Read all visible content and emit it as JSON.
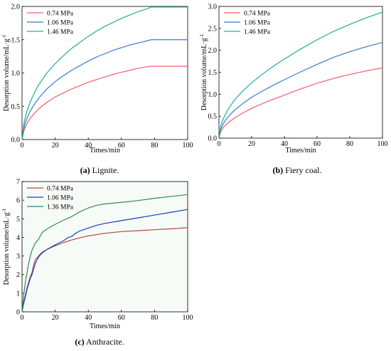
{
  "chart_data": [
    {
      "id": "a",
      "type": "line",
      "caption_label": "(a)",
      "caption_text": "Lignite.",
      "xlabel": "Times/min",
      "ylabel": "Desorption volume/mL·g",
      "ylabel_sup": "-1",
      "xlim": [
        0,
        100
      ],
      "ylim": [
        0,
        2.0
      ],
      "xticks": [
        "0",
        "20",
        "40",
        "60",
        "80",
        "100"
      ],
      "yticks": [
        "0.0",
        "0.5",
        "1.0",
        "1.5",
        "2.0"
      ],
      "legend_position": "top-left",
      "series": [
        {
          "name": "0.74 MPa",
          "color": "#f0606a",
          "x": [
            0,
            1,
            2,
            3,
            5,
            8,
            10,
            15,
            20,
            25,
            30,
            35,
            40,
            45,
            50,
            55,
            60,
            65,
            70,
            75,
            77,
            80,
            90,
            100
          ],
          "y": [
            0,
            0.12,
            0.19,
            0.24,
            0.32,
            0.41,
            0.46,
            0.56,
            0.64,
            0.7,
            0.76,
            0.81,
            0.86,
            0.9,
            0.94,
            0.98,
            1.01,
            1.04,
            1.07,
            1.09,
            1.1,
            1.1,
            1.1,
            1.1
          ]
        },
        {
          "name": "1.06 MPa",
          "color": "#2f7fd6",
          "x": [
            0,
            1,
            2,
            3,
            5,
            8,
            10,
            15,
            20,
            25,
            30,
            35,
            40,
            45,
            50,
            55,
            60,
            65,
            70,
            75,
            78,
            80,
            90,
            100
          ],
          "y": [
            0,
            0.16,
            0.25,
            0.32,
            0.43,
            0.55,
            0.62,
            0.76,
            0.87,
            0.96,
            1.04,
            1.11,
            1.18,
            1.24,
            1.29,
            1.34,
            1.38,
            1.42,
            1.45,
            1.48,
            1.5,
            1.5,
            1.5,
            1.5
          ]
        },
        {
          "name": "1.46 MPa",
          "color": "#1db092",
          "x": [
            0,
            1,
            2,
            3,
            5,
            8,
            10,
            15,
            20,
            25,
            30,
            35,
            40,
            45,
            50,
            55,
            60,
            65,
            70,
            75,
            78,
            80,
            90,
            100
          ],
          "y": [
            0,
            0.22,
            0.34,
            0.43,
            0.57,
            0.73,
            0.82,
            1.0,
            1.14,
            1.26,
            1.37,
            1.46,
            1.55,
            1.63,
            1.7,
            1.76,
            1.82,
            1.87,
            1.92,
            1.96,
            1.99,
            1.99,
            1.99,
            1.99
          ]
        }
      ]
    },
    {
      "id": "b",
      "type": "line",
      "caption_label": "(b)",
      "caption_text": "Fiery coal.",
      "xlabel": "Times/min",
      "ylabel": "Desorption volume/mL·g",
      "ylabel_sup": "-1",
      "xlim": [
        0,
        100
      ],
      "ylim": [
        0,
        3.0
      ],
      "xticks": [
        "0",
        "20",
        "40",
        "60",
        "80",
        "100"
      ],
      "yticks": [
        "0.0",
        "0.5",
        "1.0",
        "1.5",
        "2.0",
        "2.5",
        "3.0"
      ],
      "legend_position": "top-left",
      "series": [
        {
          "name": "0.74 MPa",
          "color": "#f0606a",
          "x": [
            0,
            1,
            2,
            3,
            5,
            8,
            10,
            15,
            20,
            25,
            30,
            35,
            40,
            50,
            60,
            70,
            80,
            90,
            100
          ],
          "y": [
            0,
            0.14,
            0.21,
            0.26,
            0.33,
            0.42,
            0.47,
            0.58,
            0.68,
            0.76,
            0.84,
            0.91,
            0.98,
            1.12,
            1.25,
            1.36,
            1.45,
            1.53,
            1.6
          ]
        },
        {
          "name": "1.06 MPa",
          "color": "#2f7fd6",
          "x": [
            0,
            1,
            2,
            3,
            5,
            8,
            10,
            15,
            20,
            25,
            30,
            35,
            40,
            50,
            60,
            70,
            80,
            90,
            100
          ],
          "y": [
            0,
            0.19,
            0.28,
            0.35,
            0.46,
            0.58,
            0.65,
            0.8,
            0.93,
            1.04,
            1.14,
            1.24,
            1.33,
            1.51,
            1.68,
            1.84,
            1.97,
            2.08,
            2.18
          ]
        },
        {
          "name": "1.46 MPa",
          "color": "#1db092",
          "x": [
            0,
            1,
            2,
            3,
            5,
            8,
            10,
            15,
            20,
            25,
            30,
            35,
            40,
            50,
            60,
            70,
            80,
            90,
            100
          ],
          "y": [
            0,
            0.26,
            0.38,
            0.47,
            0.62,
            0.79,
            0.89,
            1.09,
            1.26,
            1.41,
            1.55,
            1.68,
            1.8,
            2.03,
            2.24,
            2.43,
            2.59,
            2.74,
            2.87
          ]
        }
      ]
    },
    {
      "id": "c",
      "type": "line",
      "caption_label": "(c)",
      "caption_text": "Anthracite.",
      "xlabel": "Times/min",
      "ylabel": "Desorption volume/mL·g",
      "ylabel_sup": "-1",
      "xlim": [
        0,
        100
      ],
      "ylim": [
        0,
        7
      ],
      "xticks": [
        "0",
        "20",
        "40",
        "60",
        "80",
        "100"
      ],
      "yticks": [
        "0",
        "1",
        "2",
        "3",
        "4",
        "5",
        "6",
        "7"
      ],
      "legend_position": "top-left",
      "series": [
        {
          "name": "0.74 MPa",
          "color": "#b04a3a",
          "x": [
            0,
            1,
            2,
            3,
            4,
            5,
            6,
            7,
            8,
            10,
            12,
            15,
            20,
            25,
            30,
            35,
            40,
            50,
            60,
            70,
            80,
            90,
            100
          ],
          "y": [
            0,
            0.5,
            0.9,
            1.3,
            1.6,
            1.9,
            2.1,
            2.5,
            2.8,
            3.0,
            3.2,
            3.35,
            3.55,
            3.72,
            3.86,
            3.98,
            4.08,
            4.22,
            4.31,
            4.36,
            4.41,
            4.46,
            4.52
          ]
        },
        {
          "name": "1.06 MPa",
          "color": "#1f3fbf",
          "x": [
            0,
            1,
            2,
            3,
            4,
            5,
            6,
            7,
            8,
            10,
            12,
            15,
            20,
            25,
            28,
            30,
            32,
            35,
            40,
            45,
            50,
            60,
            70,
            80,
            90,
            100
          ],
          "y": [
            0,
            0.45,
            0.8,
            1.2,
            1.5,
            1.8,
            2.0,
            2.3,
            2.6,
            2.95,
            3.15,
            3.35,
            3.6,
            3.82,
            4.0,
            4.05,
            4.2,
            4.35,
            4.5,
            4.65,
            4.75,
            4.9,
            5.05,
            5.2,
            5.35,
            5.5
          ]
        },
        {
          "name": "1.36 MPa",
          "color": "#2e8b57",
          "x": [
            0,
            1,
            2,
            3,
            4,
            5,
            6,
            7,
            8,
            10,
            12,
            15,
            20,
            25,
            30,
            35,
            40,
            45,
            50,
            60,
            70,
            80,
            90,
            100
          ],
          "y": [
            0,
            0.9,
            1.6,
            2.1,
            2.6,
            3.0,
            3.3,
            3.5,
            3.7,
            3.9,
            4.25,
            4.45,
            4.7,
            4.92,
            5.12,
            5.38,
            5.58,
            5.72,
            5.8,
            5.88,
            5.98,
            6.1,
            6.2,
            6.3
          ]
        }
      ]
    }
  ]
}
